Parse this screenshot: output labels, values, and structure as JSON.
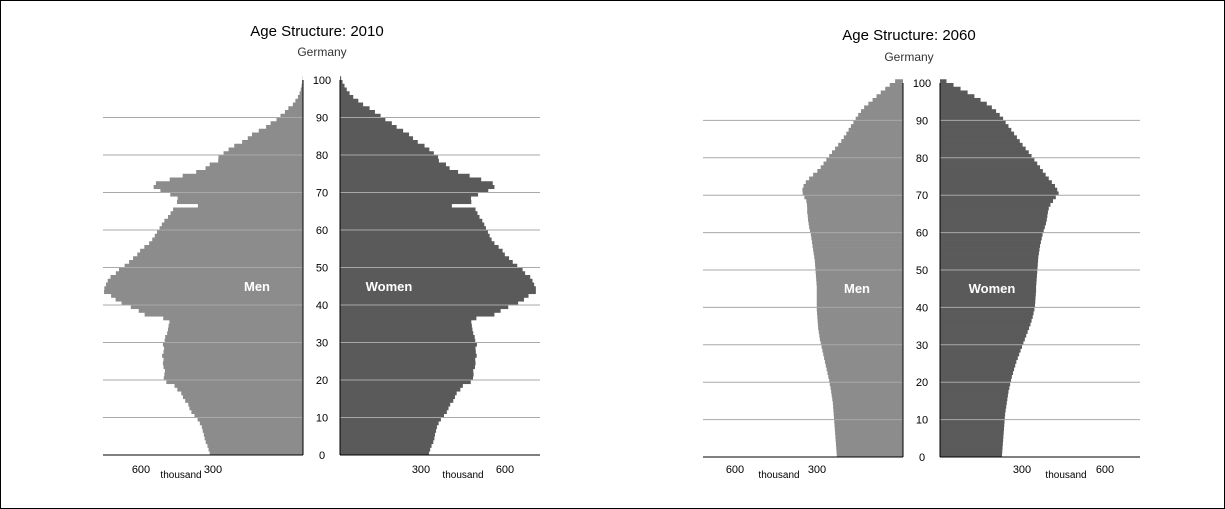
{
  "colors": {
    "men": "#8c8c8c",
    "women": "#5a5a5a",
    "grid": "#a8a8a8",
    "axis": "#000000"
  },
  "chart_data": [
    {
      "type": "bar",
      "orientation": "horizontal-pyramid",
      "title": "Age Structure: 2010",
      "subtitle": "Germany",
      "y_ticks": [
        "0",
        "10",
        "20",
        "30",
        "40",
        "50",
        "60",
        "70",
        "80",
        "90",
        "100"
      ],
      "x_ticks_left": [
        "600",
        "300"
      ],
      "x_ticks_right": [
        "300",
        "600"
      ],
      "x_unit": "thousand",
      "ylim": [
        0,
        100
      ],
      "xlim": [
        0,
        650
      ],
      "grid": "horizontal lines every 10 years",
      "series_labels": {
        "men": "Men",
        "women": "Women"
      },
      "series": [
        {
          "name": "Men",
          "values": [
            331,
            335,
            339,
            345,
            349,
            352,
            356,
            359,
            366,
            374,
            385,
            396,
            403,
            407,
            418,
            426,
            432,
            446,
            456,
            485,
            494,
            492,
            490,
            495,
            497,
            495,
            500,
            495,
            493,
            497,
            491,
            489,
            482,
            479,
            477,
            474,
            496,
            562,
            583,
            611,
            644,
            665,
            681,
            706,
            705,
            699,
            693,
            683,
            664,
            653,
            633,
            617,
            603,
            588,
            578,
            563,
            546,
            535,
            526,
            518,
            509,
            501,
            492,
            479,
            470,
            461,
            373,
            447,
            445,
            471,
            506,
            530,
            522,
            473,
            427,
            379,
            346,
            331,
            301,
            300,
            282,
            264,
            244,
            216,
            196,
            181,
            157,
            131,
            115,
            94,
            80,
            64,
            52,
            36,
            27,
            18,
            12,
            8,
            5,
            3,
            1
          ]
        },
        {
          "name": "Women",
          "values": [
            316,
            320,
            325,
            331,
            335,
            337,
            341,
            344,
            350,
            358,
            369,
            379,
            385,
            391,
            402,
            408,
            414,
            427,
            436,
            464,
            472,
            474,
            473,
            479,
            481,
            480,
            485,
            482,
            481,
            486,
            480,
            478,
            473,
            470,
            468,
            466,
            484,
            548,
            570,
            597,
            632,
            653,
            669,
            695,
            695,
            689,
            683,
            675,
            657,
            648,
            629,
            613,
            600,
            585,
            577,
            563,
            548,
            538,
            531,
            525,
            518,
            512,
            505,
            495,
            488,
            481,
            397,
            466,
            465,
            490,
            526,
            548,
            542,
            501,
            460,
            419,
            389,
            376,
            351,
            348,
            333,
            317,
            300,
            276,
            259,
            245,
            224,
            201,
            184,
            161,
            144,
            124,
            105,
            82,
            65,
            47,
            34,
            24,
            16,
            9,
            4
          ]
        }
      ]
    },
    {
      "type": "bar",
      "orientation": "horizontal-pyramid",
      "title": "Age Structure: 2060",
      "subtitle": "Germany",
      "y_ticks": [
        "0",
        "10",
        "20",
        "30",
        "40",
        "50",
        "60",
        "70",
        "80",
        "90",
        "100"
      ],
      "x_ticks_left": [
        "600",
        "300"
      ],
      "x_ticks_right": [
        "300",
        "600"
      ],
      "x_unit": "thousand",
      "ylim": [
        0,
        100
      ],
      "xlim": [
        0,
        650
      ],
      "grid": "horizontal lines every 10 years",
      "series_labels": {
        "men": "Men",
        "women": "Women"
      },
      "series": [
        {
          "name": "Men",
          "values": [
            235,
            236,
            237,
            238,
            239,
            240,
            241,
            242,
            243,
            244,
            245,
            246,
            247,
            248,
            249,
            251,
            253,
            255,
            257,
            260,
            262,
            265,
            268,
            271,
            274,
            277,
            280,
            283,
            286,
            289,
            292,
            295,
            297,
            299,
            301,
            302,
            303,
            304,
            305,
            306,
            306,
            306,
            306,
            306,
            306,
            306,
            307,
            308,
            309,
            310,
            311,
            312,
            313,
            315,
            317,
            319,
            321,
            323,
            325,
            327,
            330,
            333,
            335,
            337,
            338,
            340,
            340,
            341,
            343,
            350,
            356,
            357,
            353,
            345,
            333,
            319,
            304,
            292,
            282,
            272,
            262,
            252,
            241,
            230,
            219,
            210,
            201,
            193,
            185,
            176,
            168,
            159,
            149,
            138,
            123,
            108,
            94,
            79,
            63,
            47,
            28
          ]
        },
        {
          "name": "Women",
          "values": [
            220,
            221,
            222,
            223,
            224,
            225,
            226,
            227,
            228,
            229,
            230,
            231,
            233,
            235,
            237,
            239,
            241,
            243,
            246,
            249,
            252,
            255,
            259,
            263,
            267,
            271,
            276,
            281,
            286,
            291,
            296,
            301,
            306,
            311,
            316,
            321,
            325,
            329,
            332,
            335,
            337,
            338,
            339,
            340,
            341,
            341,
            342,
            343,
            344,
            345,
            346,
            347,
            348,
            349,
            351,
            353,
            355,
            358,
            361,
            364,
            368,
            372,
            376,
            379,
            381,
            383,
            386,
            392,
            401,
            411,
            421,
            416,
            408,
            397,
            386,
            375,
            365,
            355,
            345,
            335,
            325,
            315,
            304,
            293,
            283,
            273,
            263,
            253,
            243,
            233,
            224,
            212,
            199,
            184,
            166,
            144,
            122,
            98,
            73,
            48,
            23
          ]
        }
      ]
    }
  ]
}
